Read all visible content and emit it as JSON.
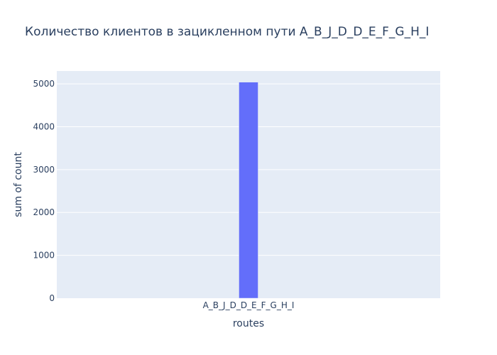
{
  "colors": {
    "plot_background": "#E5ECF6",
    "gridline": "#ffffff",
    "bar": "#636EFA",
    "text": "#2a3f5f",
    "page_background": "#ffffff"
  },
  "chart_data": {
    "type": "bar",
    "title": "Количество клиентов в зацикленном пути A_B_J_D_D_E_F_G_H_I",
    "xlabel": "routes",
    "ylabel": "sum of count",
    "categories": [
      "A_B_J_D_D_E_F_G_H_I"
    ],
    "values": [
      5040
    ],
    "ylim": [
      0,
      5300
    ],
    "yticks": [
      0,
      1000,
      2000,
      3000,
      4000,
      5000
    ],
    "grid": true,
    "legend": "none"
  }
}
